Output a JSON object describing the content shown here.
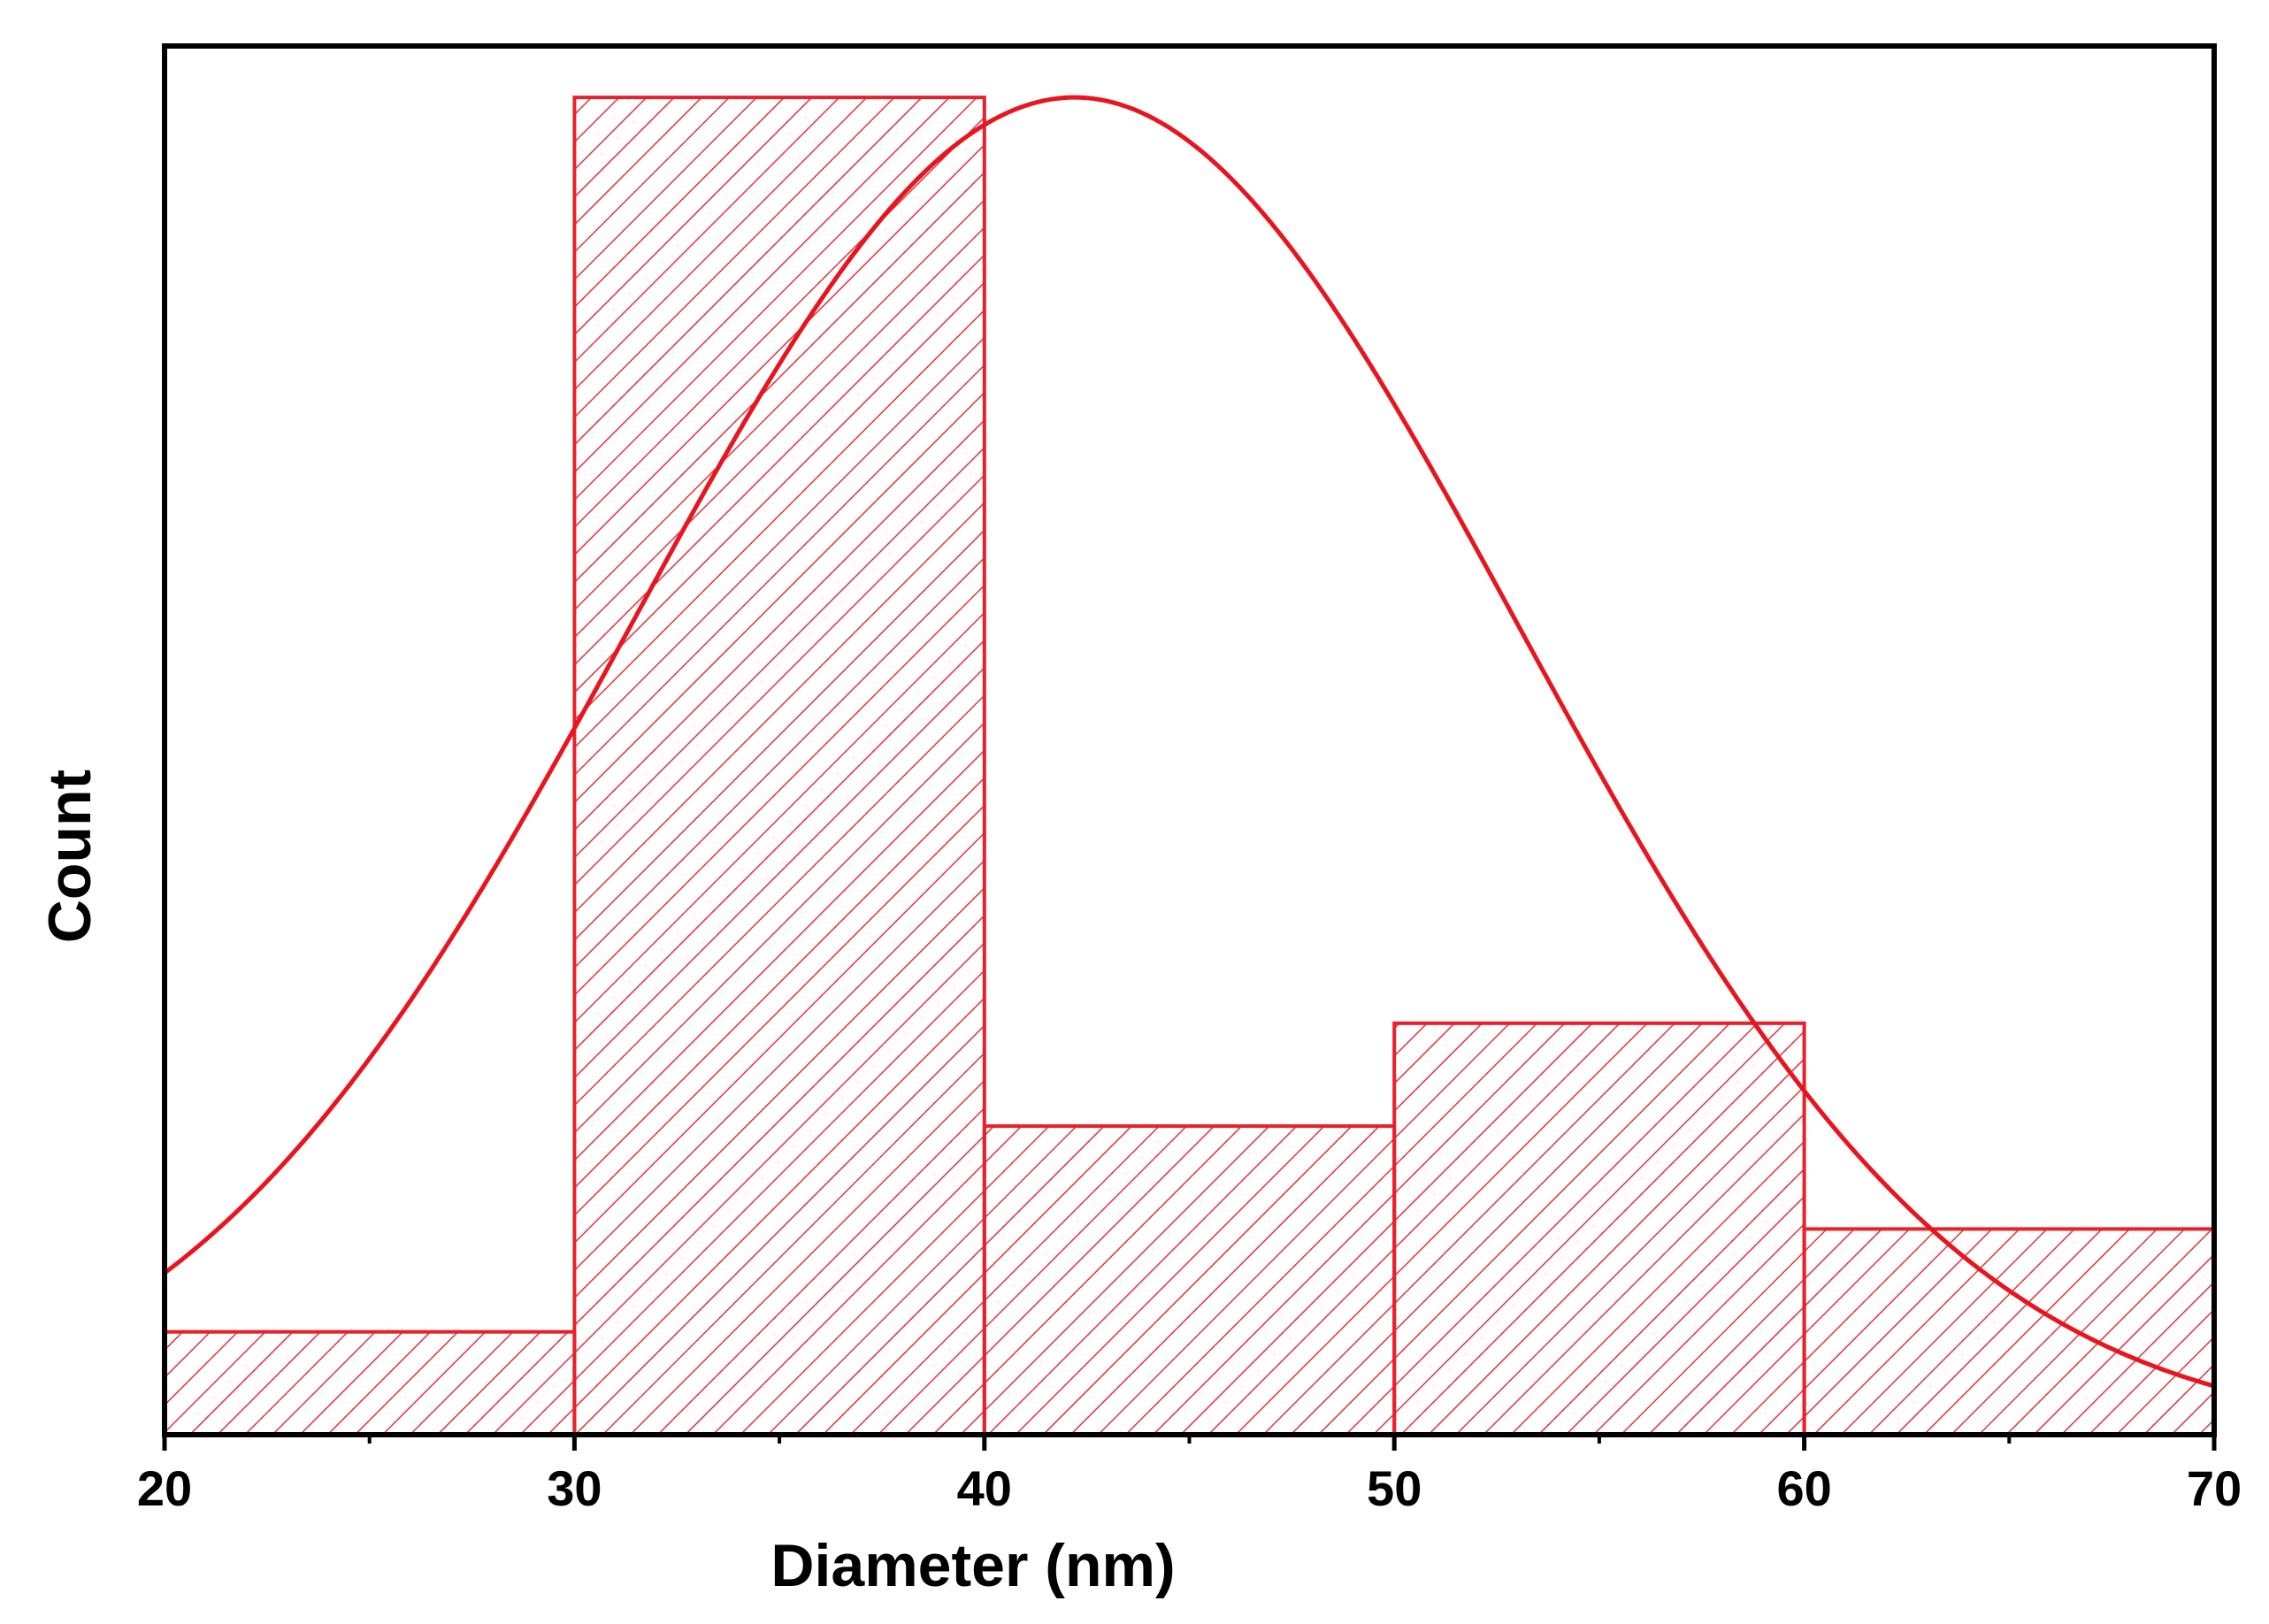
{
  "chart_data": {
    "type": "bar",
    "subtype": "histogram-with-fit",
    "xlabel": "Diameter (nm)",
    "ylabel": "Count",
    "xlim": [
      20,
      70
    ],
    "ylim": [
      0,
      13.5
    ],
    "x_ticks": [
      20,
      30,
      40,
      50,
      60,
      70
    ],
    "x_tick_labels": [
      "20",
      "30",
      "40",
      "50",
      "60",
      "70"
    ],
    "x_minor_ticks": [
      25,
      35,
      45,
      55,
      65
    ],
    "y_ticks_shown": false,
    "grid": false,
    "legend": "none",
    "bins": [
      {
        "start": 20,
        "end": 30,
        "count": 1
      },
      {
        "start": 30,
        "end": 40,
        "count": 13
      },
      {
        "start": 40,
        "end": 50,
        "count": 3
      },
      {
        "start": 50,
        "end": 60,
        "count": 4
      },
      {
        "start": 60,
        "end": 70,
        "count": 2
      }
    ],
    "fit_curve": {
      "type": "gaussian",
      "center": 42.2,
      "sigma": 10.8,
      "peak": 13.0
    },
    "colors": {
      "bar_edge": "#e8202a",
      "hatch": "#e0343c",
      "fit_line": "#e8141e",
      "axis": "#000000"
    }
  }
}
